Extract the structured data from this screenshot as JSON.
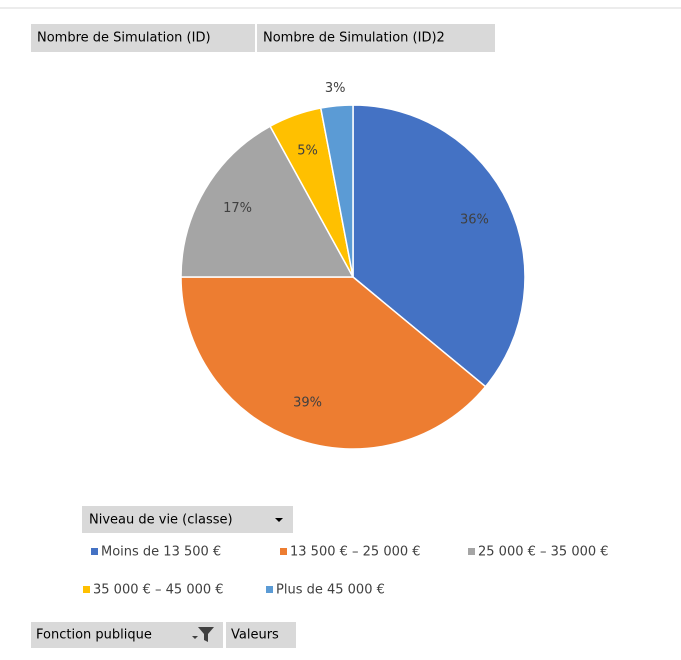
{
  "field_buttons": {
    "values": [
      "Nombre de Simulation (ID)",
      "Nombre de Simulation (ID)2"
    ],
    "legend_field": "Niveau de vie (classe)",
    "filters": [
      "Fonction publique",
      "Valeurs"
    ]
  },
  "chart_data": {
    "type": "pie",
    "categories": [
      "Moins de 13 500 €",
      "13 500 € – 25 000 €",
      "25 000 € – 35 000 €",
      "35 000 € – 45 000 €",
      "Plus de 45 000 €"
    ],
    "values": [
      36,
      39,
      17,
      5,
      3
    ],
    "value_labels": [
      "36%",
      "39%",
      "17%",
      "5%",
      "3%"
    ],
    "colors": [
      "#4472c4",
      "#ed7d31",
      "#a5a5a5",
      "#ffc000",
      "#5b9bd5"
    ],
    "legend": "bottom"
  }
}
